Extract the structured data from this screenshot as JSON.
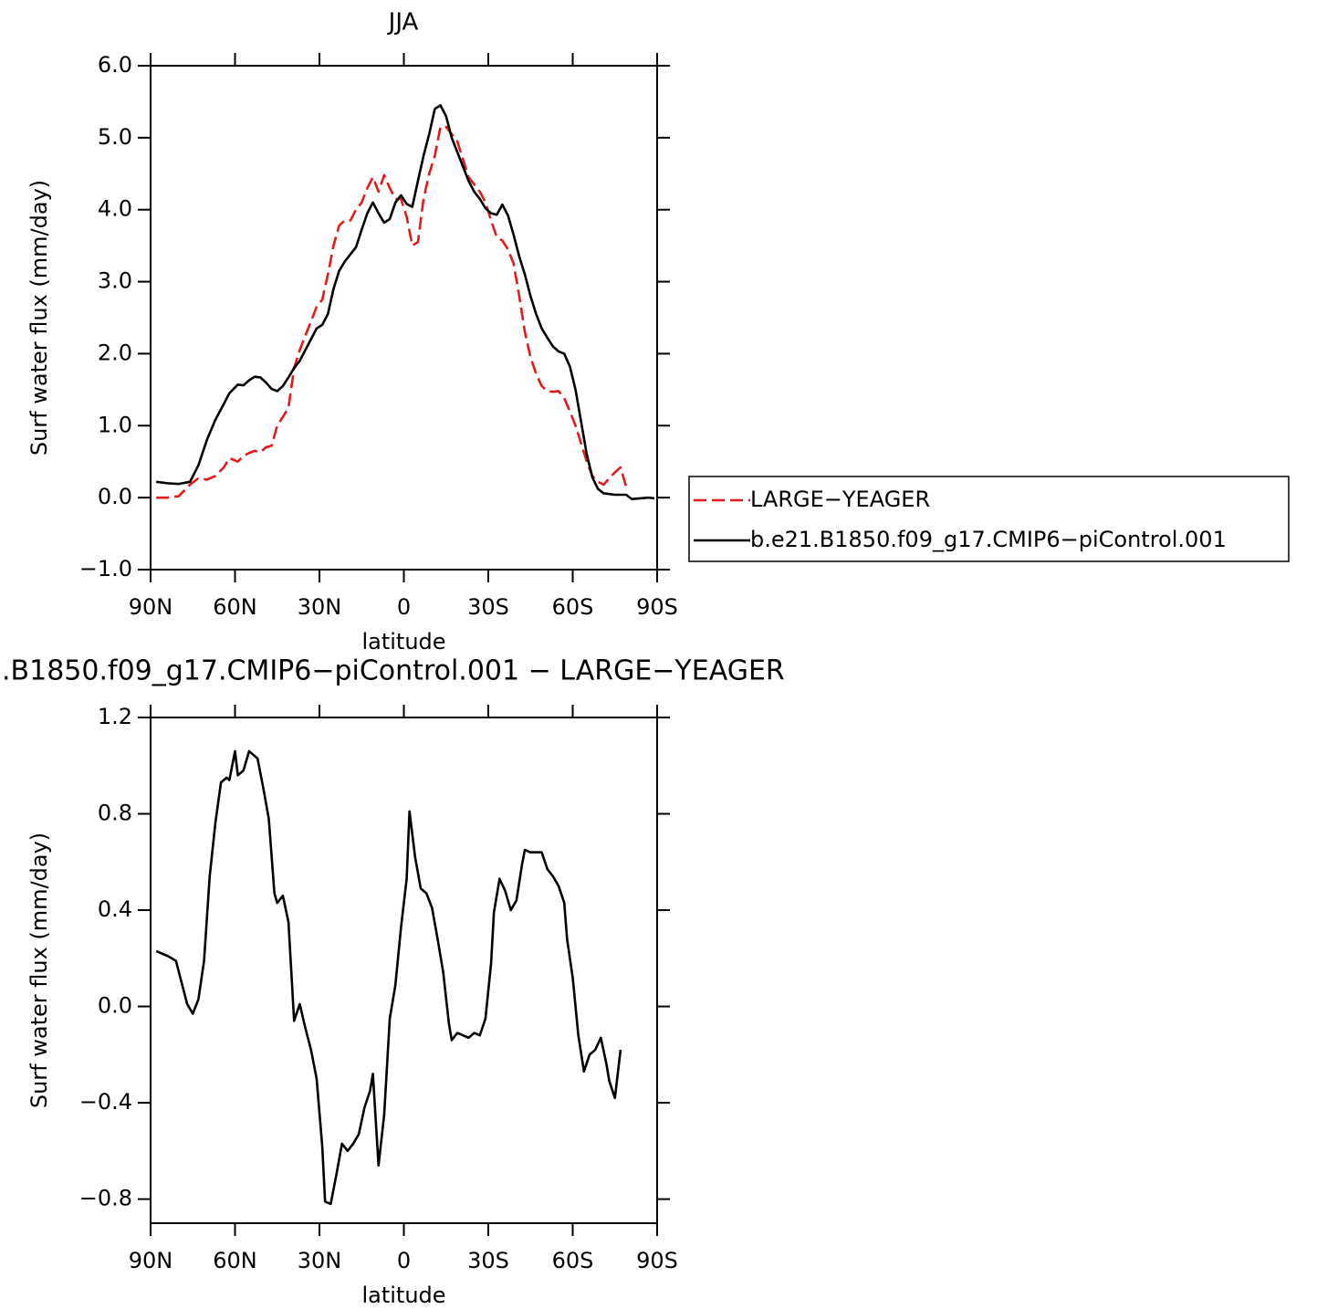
{
  "chart_data": [
    {
      "type": "line",
      "title": "JJA",
      "ylabel": "Surf water flux (mm/day)",
      "xlabel": "latitude",
      "xlim": [
        90,
        -90
      ],
      "xticks": [
        {
          "value": 90,
          "label": "90N"
        },
        {
          "value": 60,
          "label": "60N"
        },
        {
          "value": 30,
          "label": "30N"
        },
        0,
        {
          "value": -30,
          "label": "30S"
        },
        {
          "value": -60,
          "label": "60S"
        },
        {
          "value": -90,
          "label": "90S"
        }
      ],
      "ylim": [
        -1,
        6
      ],
      "yticks": [
        {
          "value": -1,
          "label": "−1.0"
        },
        {
          "value": 0,
          "label": "0.0"
        },
        {
          "value": 1,
          "label": "1.0"
        },
        {
          "value": 2,
          "label": "2.0"
        },
        {
          "value": 3,
          "label": "3.0"
        },
        {
          "value": 4,
          "label": "4.0"
        },
        {
          "value": 5,
          "label": "5.0"
        },
        {
          "value": 6,
          "label": "6.0"
        }
      ],
      "legend": "outside-right",
      "x": [
        88,
        84,
        80,
        76,
        73,
        70,
        67,
        64,
        62,
        59,
        57,
        55,
        53,
        51,
        49,
        47,
        45,
        43,
        41,
        39,
        37,
        35,
        33,
        31,
        29,
        27,
        25,
        23,
        21,
        19,
        17,
        15,
        13,
        11,
        9,
        7,
        5,
        3,
        1,
        -1,
        -3,
        -5,
        -7,
        -9,
        -11,
        -13,
        -15,
        -17,
        -19,
        -21,
        -23,
        -25,
        -27,
        -29,
        -31,
        -33,
        -35,
        -37,
        -39,
        -41,
        -43,
        -45,
        -47,
        -49,
        -51,
        -53,
        -55,
        -57,
        -59,
        -61,
        -63,
        -65,
        -67,
        -69,
        -71,
        -73,
        -75,
        -77,
        -79,
        -81,
        -84,
        -87,
        -89
      ],
      "series": [
        {
          "name": "LARGE−YEAGER",
          "color": "#e31a1c",
          "dash": true,
          "values": [
            0,
            0,
            0.02,
            0.18,
            0.27,
            0.25,
            0.3,
            0.42,
            0.55,
            0.5,
            0.58,
            0.62,
            0.65,
            0.63,
            0.7,
            0.72,
            1.0,
            1.12,
            1.25,
            1.8,
            2.05,
            2.25,
            2.45,
            2.65,
            2.75,
            3.1,
            3.5,
            3.78,
            3.85,
            3.85,
            4.0,
            4.1,
            4.3,
            4.45,
            4.25,
            4.48,
            4.3,
            4.15,
            4.15,
            3.9,
            3.5,
            3.55,
            4.15,
            4.5,
            4.75,
            5.15,
            5.15,
            5.05,
            4.95,
            4.7,
            4.45,
            4.35,
            4.25,
            4.1,
            3.85,
            3.62,
            3.57,
            3.45,
            3.25,
            2.8,
            2.3,
            1.95,
            1.72,
            1.55,
            1.48,
            1.47,
            1.48,
            1.38,
            1.2,
            1.0,
            0.75,
            0.5,
            0.3,
            0.22,
            0.18,
            0.27,
            0.35,
            0.42,
            0.15,
            null,
            null,
            null,
            null
          ]
        },
        {
          "name": "b.e21.B1850.f09_g17.CMIP6−piControl.001",
          "color": "#000000",
          "dash": false,
          "values": [
            0.22,
            0.2,
            0.19,
            0.22,
            0.45,
            0.8,
            1.08,
            1.3,
            1.45,
            1.57,
            1.56,
            1.63,
            1.68,
            1.67,
            1.6,
            1.51,
            1.48,
            1.55,
            1.67,
            1.8,
            1.9,
            2.05,
            2.2,
            2.35,
            2.4,
            2.55,
            2.9,
            3.15,
            3.28,
            3.38,
            3.48,
            3.72,
            3.95,
            4.1,
            3.95,
            3.82,
            3.87,
            4.1,
            4.2,
            4.08,
            4.04,
            4.4,
            4.75,
            5.05,
            5.4,
            5.45,
            5.3,
            5.0,
            4.8,
            4.6,
            4.4,
            4.25,
            4.15,
            4.02,
            3.95,
            3.93,
            4.07,
            3.92,
            3.65,
            3.35,
            3.1,
            2.8,
            2.55,
            2.35,
            2.22,
            2.1,
            2.03,
            2.0,
            1.82,
            1.5,
            1.05,
            0.6,
            0.28,
            0.12,
            0.06,
            0.05,
            0.04,
            0.04,
            0.04,
            -0.02,
            -0.01,
            0,
            -0.01
          ]
        }
      ]
    },
    {
      "type": "line",
      "title": ".B1850.f09_g17.CMIP6−piControl.001 − LARGE−YEAGER",
      "ylabel": "Surf water flux (mm/day)",
      "xlabel": "latitude",
      "xlim": [
        90,
        -90
      ],
      "xticks": [
        {
          "value": 90,
          "label": "90N"
        },
        {
          "value": 60,
          "label": "60N"
        },
        {
          "value": 30,
          "label": "30N"
        },
        0,
        {
          "value": -30,
          "label": "30S"
        },
        {
          "value": -60,
          "label": "60S"
        },
        {
          "value": -90,
          "label": "90S"
        }
      ],
      "ylim": [
        -0.9,
        1.2
      ],
      "yticks": [
        {
          "value": -0.8,
          "label": "−0.8"
        },
        {
          "value": -0.4,
          "label": "−0.4"
        },
        {
          "value": 0,
          "label": "0.0"
        },
        0.4,
        0.8,
        1.2
      ],
      "x": [
        88,
        84,
        81,
        79,
        77,
        75,
        73,
        71,
        69,
        67,
        65,
        63,
        62,
        60,
        59,
        57,
        55,
        52,
        50,
        48,
        46,
        45,
        43,
        41,
        39,
        37,
        35,
        33,
        31,
        29,
        28,
        26,
        24,
        22,
        20,
        18,
        16,
        14,
        12,
        11,
        9,
        7,
        5,
        3,
        1,
        -1,
        -2,
        -4,
        -6,
        -8,
        -10,
        -12,
        -14,
        -16,
        -17,
        -19,
        -21,
        -23,
        -25,
        -27,
        -29,
        -31,
        -32,
        -34,
        -36,
        -38,
        -40,
        -42,
        -43,
        -45,
        -47,
        -49,
        -51,
        -53,
        -55,
        -57,
        -58,
        -60,
        -62,
        -64,
        -66,
        -68,
        -70,
        -72,
        -73,
        -75,
        -77
      ],
      "series": [
        {
          "color": "#000000",
          "dash": false,
          "values": [
            0.23,
            0.21,
            0.19,
            0.1,
            0.01,
            -0.03,
            0.03,
            0.19,
            0.54,
            0.76,
            0.93,
            0.95,
            0.94,
            1.06,
            0.96,
            0.98,
            1.06,
            1.03,
            0.91,
            0.78,
            0.47,
            0.43,
            0.46,
            0.35,
            -0.06,
            0.01,
            -0.09,
            -0.18,
            -0.3,
            -0.58,
            -0.81,
            -0.82,
            -0.7,
            -0.57,
            -0.6,
            -0.57,
            -0.53,
            -0.42,
            -0.35,
            -0.28,
            -0.66,
            -0.45,
            -0.05,
            0.09,
            0.33,
            0.53,
            0.81,
            0.62,
            0.49,
            0.47,
            0.41,
            0.28,
            0.14,
            -0.07,
            -0.14,
            -0.11,
            -0.12,
            -0.13,
            -0.11,
            -0.12,
            -0.05,
            0.18,
            0.39,
            0.53,
            0.48,
            0.4,
            0.44,
            0.59,
            0.65,
            0.64,
            0.64,
            0.64,
            0.57,
            0.54,
            0.5,
            0.43,
            0.28,
            0.12,
            -0.12,
            -0.27,
            -0.2,
            -0.18,
            -0.13,
            -0.24,
            -0.31,
            -0.38,
            -0.18
          ]
        }
      ]
    }
  ]
}
